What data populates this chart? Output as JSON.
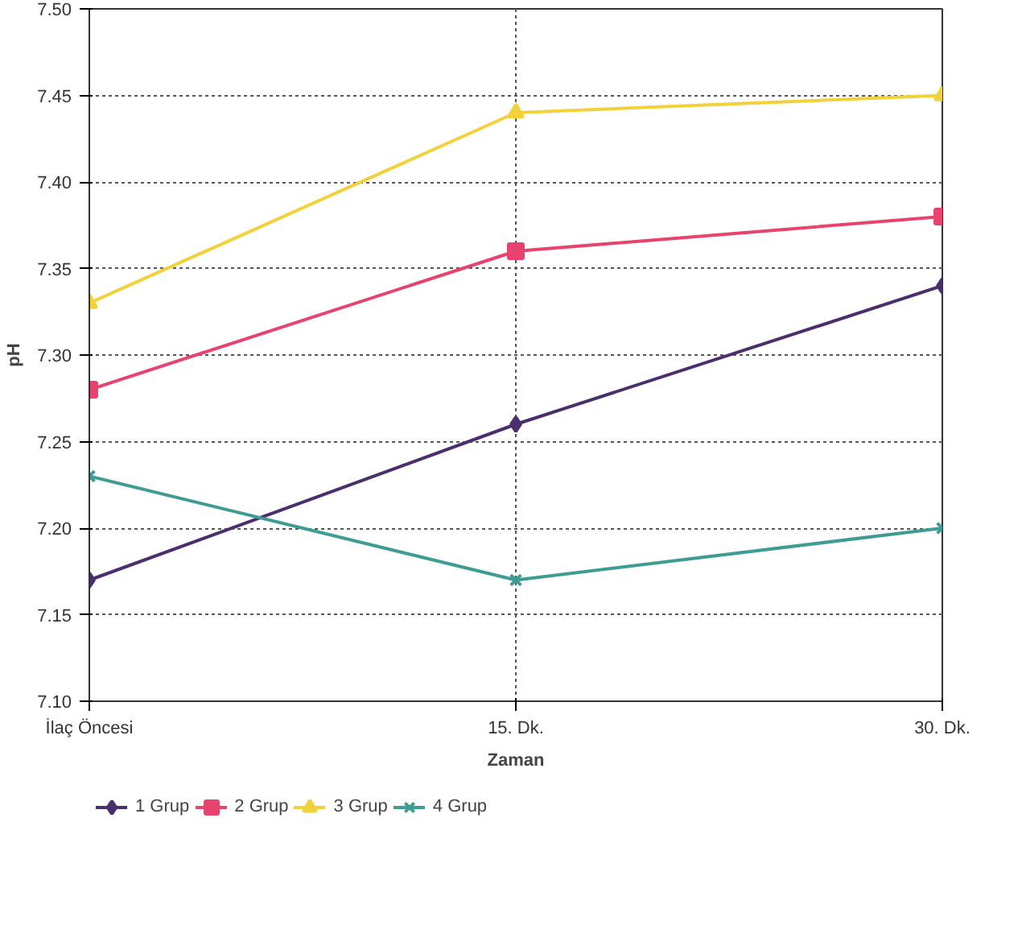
{
  "chart_data": {
    "type": "line",
    "xlabel": "Zaman",
    "ylabel": "pH",
    "categories": [
      "İlaç Öncesi",
      "15. Dk.",
      "30. Dk."
    ],
    "ylim": [
      7.1,
      7.5
    ],
    "yticks": [
      {
        "value": 7.1,
        "label": "7.10"
      },
      {
        "value": 7.15,
        "label": "7.15"
      },
      {
        "value": 7.2,
        "label": "7.20"
      },
      {
        "value": 7.25,
        "label": "7.25"
      },
      {
        "value": 7.3,
        "label": "7.30"
      },
      {
        "value": 7.35,
        "label": "7.35"
      },
      {
        "value": 7.4,
        "label": "7.40"
      },
      {
        "value": 7.45,
        "label": "7.45"
      },
      {
        "value": 7.5,
        "label": "7.50"
      }
    ],
    "grid": true,
    "legend": "bottom",
    "line_style": "solid",
    "series": [
      {
        "name": "1 Grup",
        "color": "#4b2e6e",
        "marker": "diamond",
        "values": [
          7.17,
          7.26,
          7.34
        ]
      },
      {
        "name": "2 Grup",
        "color": "#e8436e",
        "marker": "square",
        "values": [
          7.28,
          7.36,
          7.38
        ]
      },
      {
        "name": "3 Grup",
        "color": "#f2d13a",
        "marker": "triangle",
        "values": [
          7.33,
          7.44,
          7.45
        ]
      },
      {
        "name": "4 Grup",
        "color": "#3f9c94",
        "marker": "cross",
        "values": [
          7.23,
          7.17,
          7.2
        ]
      }
    ]
  }
}
